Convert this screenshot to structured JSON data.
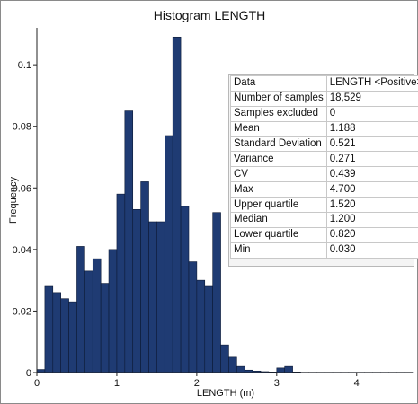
{
  "chart_data": {
    "type": "bar",
    "title": "Histogram LENGTH",
    "xlabel": "LENGTH (m)",
    "ylabel": "Frequency",
    "xlim": [
      0,
      4.7
    ],
    "ylim": [
      0,
      0.112
    ],
    "xticks": [
      "0",
      "1",
      "2",
      "3",
      "4"
    ],
    "yticks": [
      "0",
      "0.02",
      "0.04",
      "0.06",
      "0.08",
      "0.1"
    ],
    "bin_width": 0.1,
    "bin_start": 0.0,
    "values": [
      0.001,
      0.028,
      0.026,
      0.024,
      0.023,
      0.041,
      0.033,
      0.037,
      0.029,
      0.04,
      0.058,
      0.085,
      0.053,
      0.062,
      0.049,
      0.049,
      0.077,
      0.109,
      0.054,
      0.036,
      0.03,
      0.028,
      0.052,
      0.009,
      0.005,
      0.002,
      0.0008,
      0.0005,
      0.0003,
      0.0002,
      0.0015,
      0.002,
      0.0002,
      0.0001,
      0.0001,
      0.0001,
      0.0001,
      0.0001,
      0.0001,
      0.0001,
      0.0001,
      0.0001,
      0.0001,
      0.0001,
      0.0001,
      0.0001,
      0.0001
    ],
    "bar_color": "#1f3b73",
    "bar_edge_color": "#0d1a35",
    "grid": false,
    "legend": "none"
  },
  "stats": {
    "header": [
      "Data",
      "LENGTH <Positive>"
    ],
    "rows": [
      [
        "Number of samples",
        "18,529"
      ],
      [
        "Samples excluded",
        "0"
      ],
      [
        "Mean",
        "1.188"
      ],
      [
        "Standard Deviation",
        "0.521"
      ],
      [
        "Variance",
        "0.271"
      ],
      [
        "CV",
        "0.439"
      ],
      [
        "Max",
        "4.700"
      ],
      [
        "Upper quartile",
        "1.520"
      ],
      [
        "Median",
        "1.200"
      ],
      [
        "Lower quartile",
        "0.820"
      ],
      [
        "Min",
        "0.030"
      ]
    ]
  }
}
